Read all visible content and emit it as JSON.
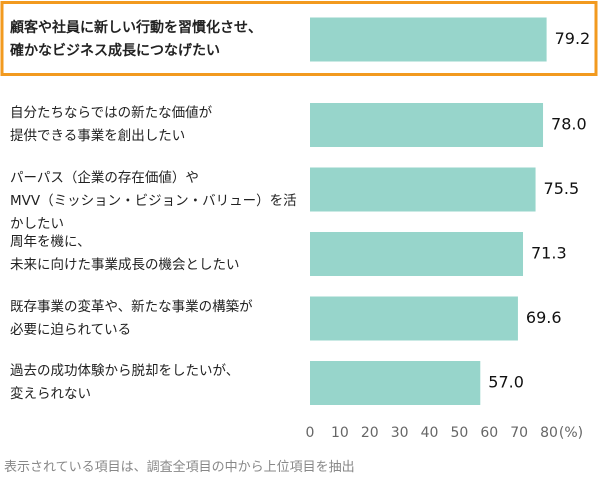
{
  "chart_data": {
    "type": "barh",
    "categories": [
      "顧客や社員に新しい行動を習慣化させ、\n確かなビジネス成長につなげたい",
      "自分たちならではの新たな価値が\n提供できる事業を創出したい",
      "パーパス（企業の存在価値）や\nMVV（ミッション・ビジョン・バリュー）を活かしたい",
      "周年を機に、\n未来に向けた事業成長の機会としたい",
      "既存事業の変革や、新たな事業の構築が\n必要に迫られている",
      "過去の成功体験から脱却をしたいが、\n変えられない"
    ],
    "values": [
      79.2,
      78,
      75.5,
      71.3,
      69.6,
      57
    ],
    "value_labels": [
      "79.2",
      "78.0",
      "75.5",
      "71.3",
      "69.6",
      "57.0"
    ],
    "color": "#97d5cb",
    "highlight_index": 0,
    "highlight_color": "#f29a1f",
    "xlim": [
      0,
      80
    ],
    "xticks": [
      0,
      10,
      20,
      30,
      40,
      50,
      60,
      70,
      80
    ],
    "x_unit_label": "(%)",
    "note": "表示されている項目は、調査全項目の中から上位項目を抽出"
  }
}
